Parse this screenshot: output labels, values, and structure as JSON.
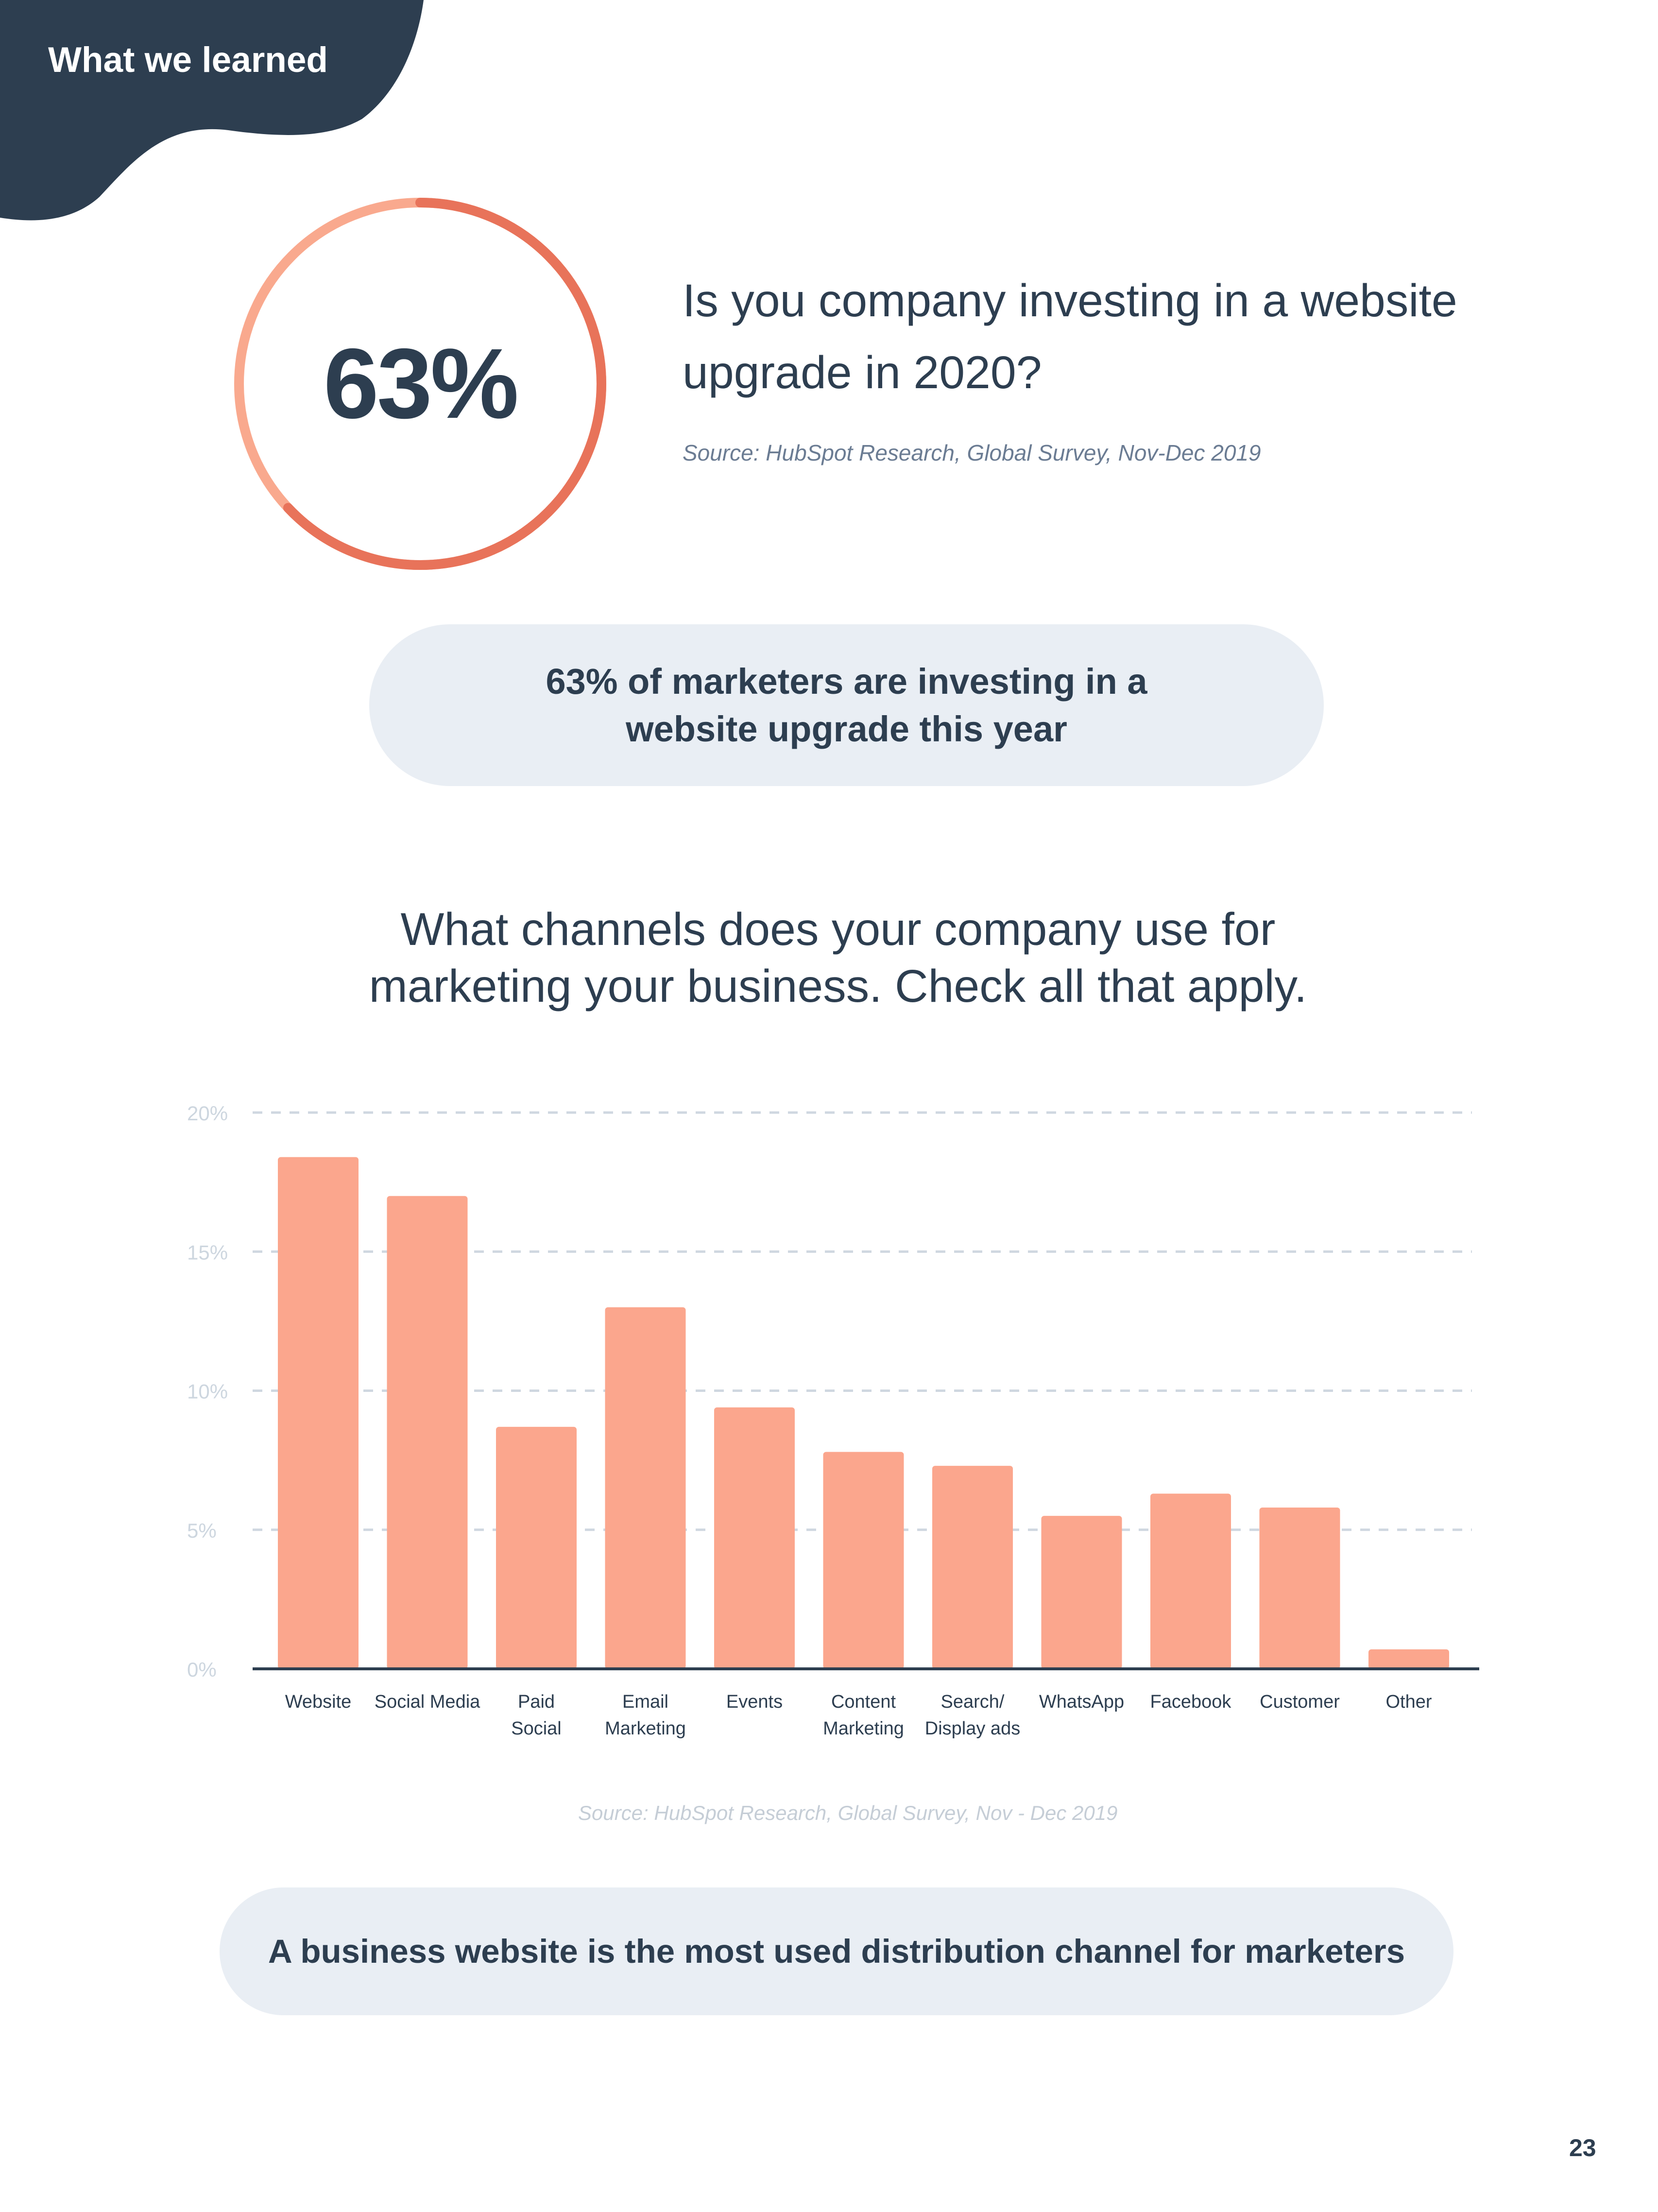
{
  "header": {
    "label": "What we learned"
  },
  "stat": {
    "value": "63%",
    "fraction": 0.63,
    "question": "Is you company investing in a website upgrade in 2020?",
    "source": "Source: HubSpot Research, Global Survey, Nov-Dec 2019",
    "colors": {
      "ring_main": "#e8735a",
      "ring_rest": "#f9a98e"
    }
  },
  "insight_1": {
    "text": "63% of marketers are investing in a website upgrade this year"
  },
  "chart_title": "What channels does your company use for marketing your business. Check all that apply.",
  "chart_data": {
    "type": "bar",
    "title": "What channels does your company use for marketing your business. Check all that apply.",
    "categories": [
      [
        "Website"
      ],
      [
        "Social Media"
      ],
      [
        "Paid",
        "Social"
      ],
      [
        "Email",
        "Marketing"
      ],
      [
        "Events"
      ],
      [
        "Content",
        "Marketing"
      ],
      [
        "Search/",
        "Display ads"
      ],
      [
        "WhatsApp"
      ],
      [
        "Facebook"
      ],
      [
        "Customer"
      ],
      [
        "Other"
      ]
    ],
    "values": [
      18.4,
      17.0,
      8.7,
      13.0,
      9.4,
      7.8,
      7.3,
      5.5,
      6.3,
      5.8,
      0.7
    ],
    "ylim": [
      0,
      20
    ],
    "yticks": [
      "0%",
      "5%",
      "10%",
      "15%",
      "20%"
    ],
    "ytick_values": [
      0,
      5,
      10,
      15,
      20
    ],
    "grid": true,
    "bar_color": "#fba68d",
    "axis_color": "#2d3e50",
    "grid_color": "#cfd7e0",
    "tick_color": "#cdd6df"
  },
  "chart_source": "Source: HubSpot Research, Global Survey, Nov - Dec 2019",
  "insight_2": {
    "text": "A business website is the most used distribution channel for marketers"
  },
  "page_number": "23",
  "colors": {
    "navy": "#2d3e50",
    "pill_bg": "#e9eef4"
  }
}
